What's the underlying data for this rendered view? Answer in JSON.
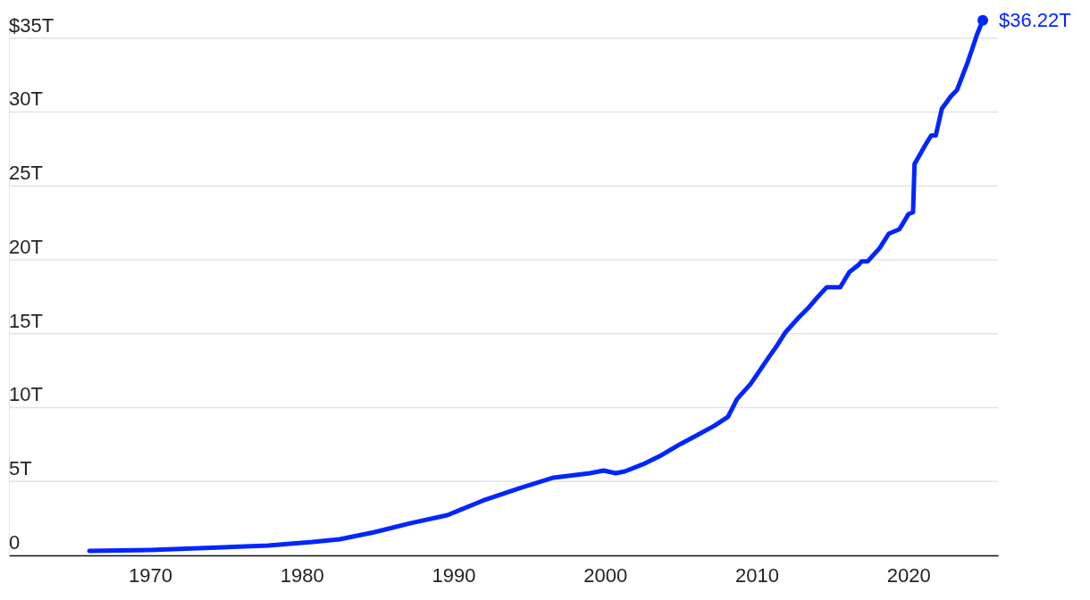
{
  "chart_data": {
    "type": "line",
    "x": [
      1966.0,
      1970.0,
      1974.8,
      1977.8,
      1980.7,
      1982.5,
      1984.8,
      1987.2,
      1989.6,
      1991.9,
      1994.3,
      1996.6,
      1999.0,
      1999.9,
      2000.7,
      2001.3,
      2002.5,
      2003.7,
      2004.9,
      2006.0,
      2007.2,
      2008.1,
      2008.7,
      2009.6,
      2010.8,
      2011.3,
      2011.9,
      2012.8,
      2013.4,
      2014.0,
      2014.6,
      2015.5,
      2016.1,
      2016.7,
      2016.9,
      2017.3,
      2018.1,
      2018.7,
      2019.4,
      2020.0,
      2020.3,
      2020.4,
      2021.1,
      2021.5,
      2021.8,
      2022.2,
      2022.8,
      2023.2,
      2023.9,
      2024.3,
      2024.5,
      2024.9
    ],
    "series": [
      {
        "color": "#0026ff",
        "values": [
          0.3,
          0.37,
          0.54,
          0.67,
          0.9,
          1.09,
          1.57,
          2.18,
          2.72,
          3.69,
          4.53,
          5.26,
          5.56,
          5.74,
          5.56,
          5.68,
          6.17,
          6.77,
          7.5,
          8.1,
          8.77,
          9.37,
          10.58,
          11.61,
          13.42,
          14.15,
          15.11,
          16.14,
          16.75,
          17.47,
          18.14,
          18.14,
          19.17,
          19.65,
          19.89,
          19.89,
          20.8,
          21.77,
          22.07,
          23.1,
          23.22,
          26.48,
          27.75,
          28.42,
          28.42,
          30.23,
          31.08,
          31.5,
          33.37,
          34.58,
          35.2,
          36.22
        ]
      }
    ],
    "xlim": [
      1960.7,
      2025.9
    ],
    "xticks": [
      1970,
      1980,
      1990,
      2000,
      2010,
      2020
    ],
    "ylim": [
      0,
      36.5
    ],
    "yticks": [
      0,
      {
        "value": 5,
        "label": "5T"
      },
      {
        "value": 10,
        "label": "10T"
      },
      {
        "value": 15,
        "label": "15T"
      },
      {
        "value": 20,
        "label": "20T"
      },
      {
        "value": 25,
        "label": "25T"
      },
      {
        "value": 30,
        "label": "30T"
      },
      {
        "value": 35,
        "label": "$35T"
      }
    ],
    "grid": "y",
    "marker": "none",
    "line_style": "solid",
    "annotations": [
      {
        "text": "$36.22T",
        "x": 2024.9,
        "y": 36.22
      }
    ]
  }
}
